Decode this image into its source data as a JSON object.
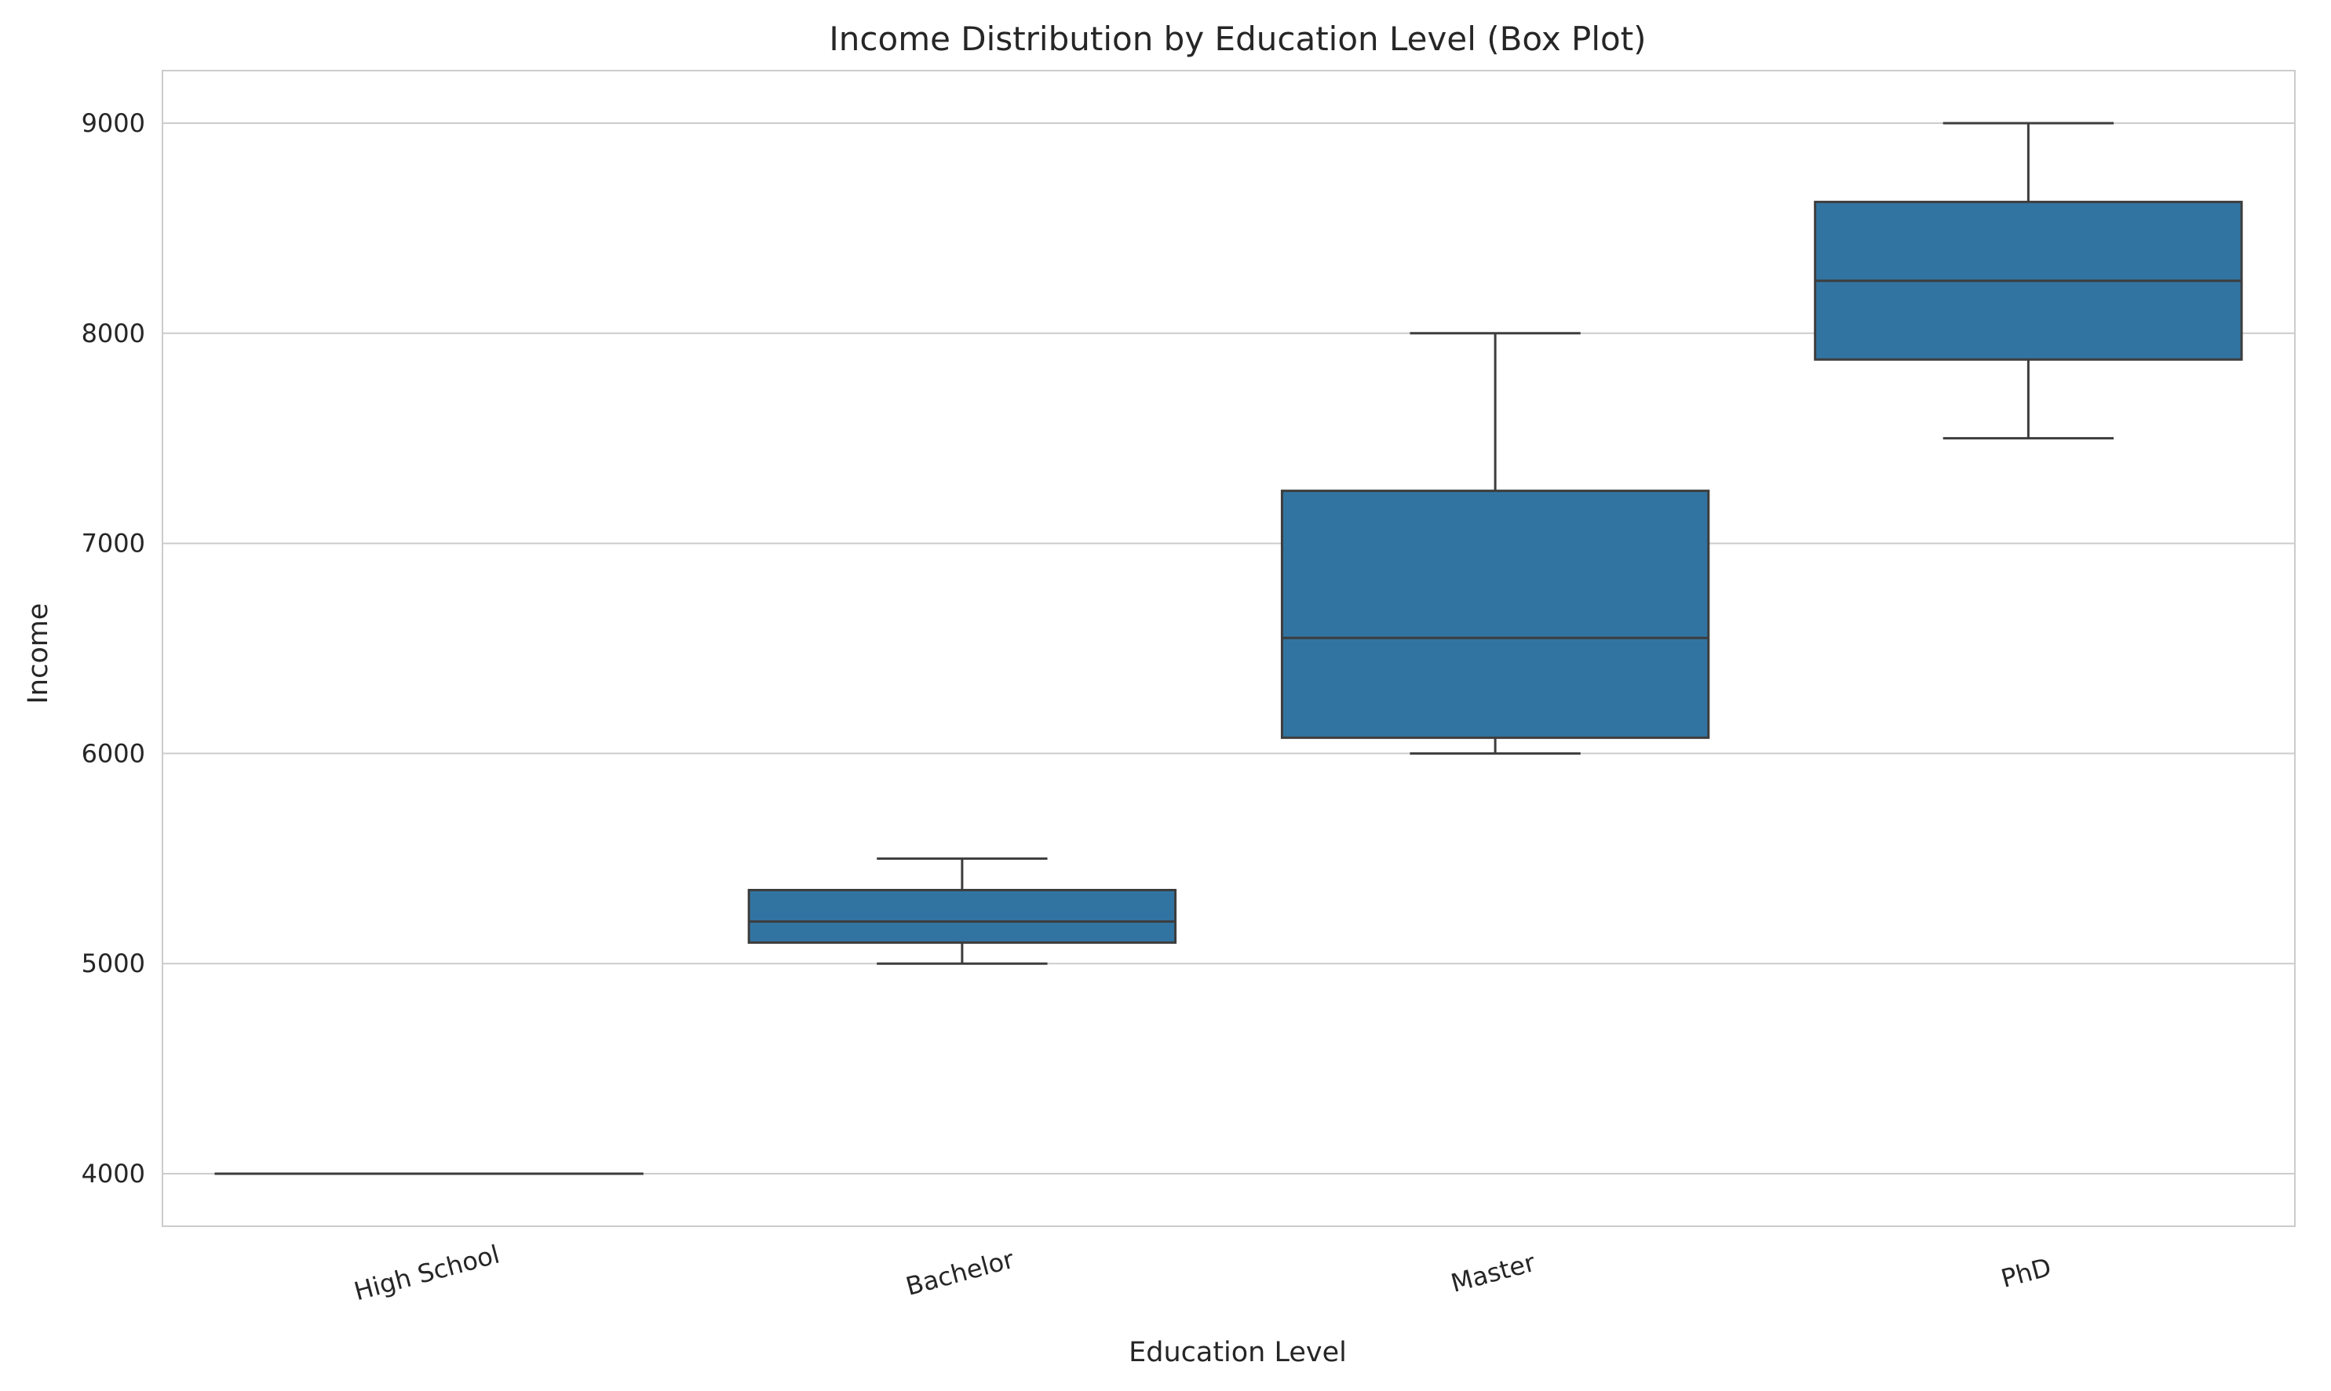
{
  "chart_data": {
    "type": "box",
    "title": "Income Distribution by Education Level (Box Plot)",
    "xlabel": "Education Level",
    "ylabel": "Income",
    "ylim": [
      3750,
      9250
    ],
    "yticks": [
      4000,
      5000,
      6000,
      7000,
      8000,
      9000
    ],
    "grid": "horizontal",
    "box_color": "#3274a1",
    "line_color": "#3d3d3d",
    "categories": [
      "High School",
      "Bachelor",
      "Master",
      "PhD"
    ],
    "boxes": [
      {
        "category": "High School",
        "min": 4000,
        "q1": 4000,
        "median": 4000,
        "q3": 4000,
        "max": 4000
      },
      {
        "category": "Bachelor",
        "min": 5000,
        "q1": 5100,
        "median": 5200,
        "q3": 5350,
        "max": 5500
      },
      {
        "category": "Master",
        "min": 6000,
        "q1": 6075,
        "median": 6550,
        "q3": 7250,
        "max": 8000
      },
      {
        "category": "PhD",
        "min": 7500,
        "q1": 7875,
        "median": 8250,
        "q3": 8625,
        "max": 9000
      }
    ]
  }
}
